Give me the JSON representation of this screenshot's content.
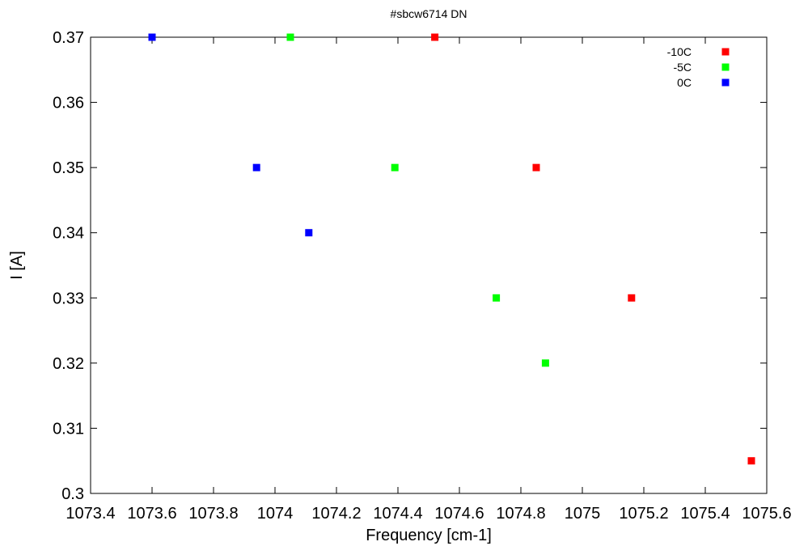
{
  "chart_data": {
    "type": "scatter",
    "title": "#sbcw6714 DN",
    "xlabel": "Frequency [cm-1]",
    "ylabel": "I [A]",
    "xlim": [
      1073.4,
      1075.6
    ],
    "ylim": [
      0.3,
      0.37
    ],
    "x_ticks": [
      "1073.4",
      "1073.6",
      "1073.8",
      "1074",
      "1074.2",
      "1074.4",
      "1074.6",
      "1074.8",
      "1075",
      "1075.2",
      "1075.4",
      "1075.6"
    ],
    "y_ticks": [
      "0.3",
      "0.31",
      "0.32",
      "0.33",
      "0.34",
      "0.35",
      "0.36",
      "0.37"
    ],
    "grid": false,
    "legend_position": "top-right",
    "series": [
      {
        "name": "-10C",
        "color": "#ff0000",
        "points": [
          {
            "x": 1074.52,
            "y": 0.37
          },
          {
            "x": 1074.85,
            "y": 0.35
          },
          {
            "x": 1075.16,
            "y": 0.33
          },
          {
            "x": 1075.55,
            "y": 0.305
          }
        ]
      },
      {
        "name": "-5C",
        "color": "#00ff00",
        "points": [
          {
            "x": 1074.05,
            "y": 0.37
          },
          {
            "x": 1074.39,
            "y": 0.35
          },
          {
            "x": 1074.72,
            "y": 0.33
          },
          {
            "x": 1074.88,
            "y": 0.32
          }
        ]
      },
      {
        "name": "0C",
        "color": "#0000ff",
        "points": [
          {
            "x": 1073.6,
            "y": 0.37
          },
          {
            "x": 1073.94,
            "y": 0.35
          },
          {
            "x": 1074.11,
            "y": 0.34
          }
        ]
      }
    ]
  }
}
